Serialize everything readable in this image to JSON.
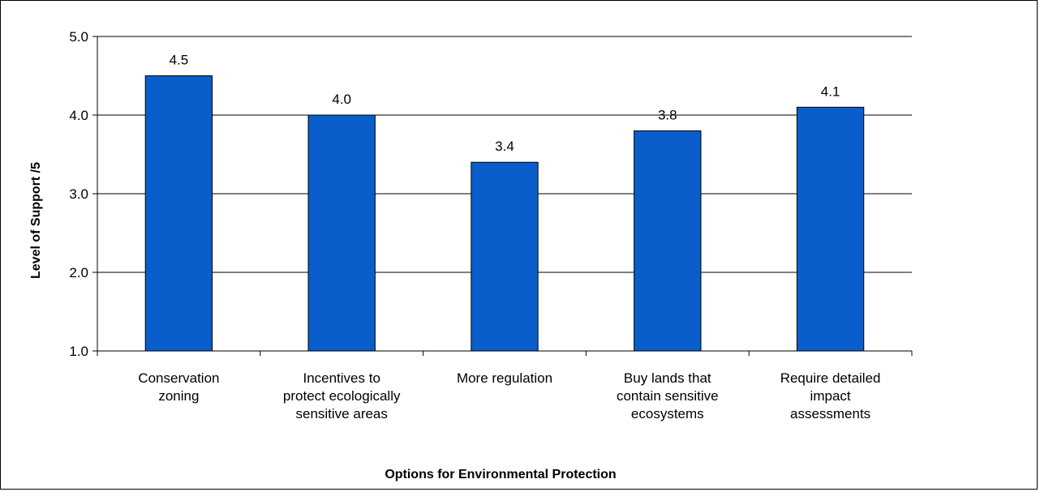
{
  "chart_data": {
    "type": "bar",
    "title": "",
    "xlabel": "Options for Environmental Protection",
    "ylabel": "Level of Support /5",
    "categories": [
      [
        "Conservation",
        "zoning"
      ],
      [
        "Incentives to",
        "protect ecologically",
        "sensitive areas"
      ],
      [
        "More regulation"
      ],
      [
        "Buy lands that",
        "contain sensitive",
        "ecosystems"
      ],
      [
        "Require detailed",
        "impact",
        "assessments"
      ]
    ],
    "values": [
      4.5,
      4.0,
      3.4,
      3.8,
      4.1
    ],
    "data_labels": [
      "4.5",
      "4.0",
      "3.4",
      "3.8",
      "4.1"
    ],
    "ylim": [
      1.0,
      5.0
    ],
    "yticks": [
      1.0,
      2.0,
      3.0,
      4.0,
      5.0
    ],
    "ytick_labels": [
      "1.0",
      "2.0",
      "3.0",
      "4.0",
      "5.0"
    ],
    "grid": true,
    "legend": "none",
    "bar_color": "#0a5ecc"
  }
}
